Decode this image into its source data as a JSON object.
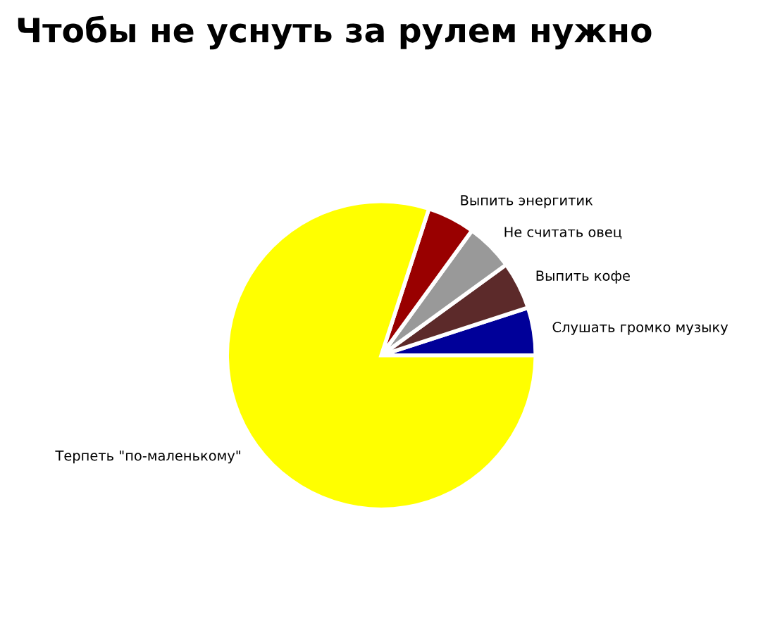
{
  "chart_data": {
    "type": "pie",
    "title": "Чтобы не уснуть за рулем нужно",
    "categories": [
      "Слушать громко музыку",
      "Выпить кофе",
      "Не считать овец",
      "Выпить энергитик",
      "Терпеть \"по-маленькому\""
    ],
    "values": [
      5,
      5,
      5,
      5,
      80
    ],
    "colors": [
      "#000099",
      "#5c2a2a",
      "#999999",
      "#990000",
      "#ffff00"
    ],
    "legend": false
  }
}
